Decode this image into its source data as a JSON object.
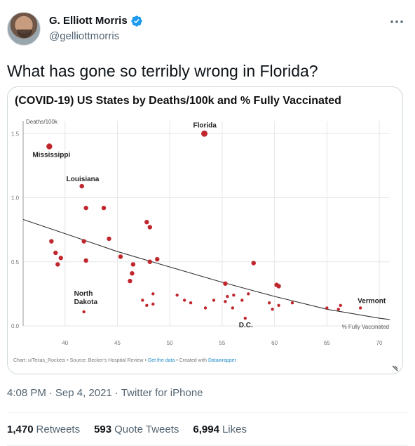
{
  "author": {
    "display_name": "G. Elliott Morris",
    "handle": "@gelliottmorris"
  },
  "tweet": {
    "text": "What has gone so terribly wrong in Florida?",
    "time": "4:08 PM",
    "sep": "·",
    "date": "Sep 4, 2021",
    "source": "Twitter for iPhone"
  },
  "stats": {
    "retweets_count": "1,470",
    "retweets_label": "Retweets",
    "quotes_count": "593",
    "quotes_label": "Quote Tweets",
    "likes_count": "6,994",
    "likes_label": "Likes"
  },
  "colors": {
    "point": "#c0272d",
    "trend": "#333333",
    "grid": "#e6e6e6",
    "verified": "#1d9bf0"
  },
  "chart_footer": {
    "credit": "Chart: u/Texas_Rockets • Source: Becker's Hospital Review • ",
    "get_data": "Get the data",
    "created": " • Created with ",
    "tool": "Datawrapper"
  },
  "chart_data": {
    "type": "scatter",
    "title": "(COVID-19) US States by Deaths/100k and % Fully Vaccinated",
    "ylabel": "Deaths/100k",
    "xlabel": "% Fully Vaccinated",
    "xlim": [
      36,
      71
    ],
    "ylim": [
      0,
      1.6
    ],
    "x_ticks": [
      40,
      45,
      50,
      55,
      60,
      65,
      70
    ],
    "y_ticks": [
      0.0,
      0.5,
      1.0,
      1.5
    ],
    "y_tick_labels": [
      "0.0",
      "0.5",
      "1.0",
      "1.5"
    ],
    "grid": true,
    "points": [
      {
        "x": 38.5,
        "y": 1.4,
        "label": "Mississippi"
      },
      {
        "x": 41.6,
        "y": 1.09,
        "label": "Louisiana"
      },
      {
        "x": 53.3,
        "y": 1.5,
        "label": "Florida"
      },
      {
        "x": 41.8,
        "y": 0.11,
        "label": "North Dakota"
      },
      {
        "x": 57.2,
        "y": 0.06,
        "label": "D.C."
      },
      {
        "x": 68.2,
        "y": 0.14,
        "label": "Vermont"
      },
      {
        "x": 42.0,
        "y": 0.92
      },
      {
        "x": 43.7,
        "y": 0.92
      },
      {
        "x": 38.7,
        "y": 0.66
      },
      {
        "x": 39.1,
        "y": 0.57
      },
      {
        "x": 39.6,
        "y": 0.53
      },
      {
        "x": 39.3,
        "y": 0.48
      },
      {
        "x": 41.8,
        "y": 0.66
      },
      {
        "x": 42.0,
        "y": 0.51
      },
      {
        "x": 44.2,
        "y": 0.68
      },
      {
        "x": 45.3,
        "y": 0.54
      },
      {
        "x": 46.5,
        "y": 0.48
      },
      {
        "x": 46.4,
        "y": 0.41
      },
      {
        "x": 46.2,
        "y": 0.35
      },
      {
        "x": 47.8,
        "y": 0.81
      },
      {
        "x": 48.1,
        "y": 0.77
      },
      {
        "x": 48.1,
        "y": 0.5
      },
      {
        "x": 48.8,
        "y": 0.52
      },
      {
        "x": 47.4,
        "y": 0.2
      },
      {
        "x": 47.8,
        "y": 0.16
      },
      {
        "x": 48.4,
        "y": 0.25
      },
      {
        "x": 48.4,
        "y": 0.17
      },
      {
        "x": 50.7,
        "y": 0.24
      },
      {
        "x": 51.4,
        "y": 0.2
      },
      {
        "x": 52.0,
        "y": 0.18
      },
      {
        "x": 53.4,
        "y": 0.14
      },
      {
        "x": 54.2,
        "y": 0.2
      },
      {
        "x": 55.3,
        "y": 0.33
      },
      {
        "x": 55.5,
        "y": 0.23
      },
      {
        "x": 55.3,
        "y": 0.19
      },
      {
        "x": 56.1,
        "y": 0.24
      },
      {
        "x": 56.0,
        "y": 0.14
      },
      {
        "x": 56.9,
        "y": 0.2
      },
      {
        "x": 57.5,
        "y": 0.25
      },
      {
        "x": 58.0,
        "y": 0.49
      },
      {
        "x": 60.2,
        "y": 0.32
      },
      {
        "x": 60.4,
        "y": 0.31
      },
      {
        "x": 59.5,
        "y": 0.18
      },
      {
        "x": 59.8,
        "y": 0.13
      },
      {
        "x": 60.4,
        "y": 0.16
      },
      {
        "x": 61.7,
        "y": 0.18
      },
      {
        "x": 65.0,
        "y": 0.14
      },
      {
        "x": 66.1,
        "y": 0.13
      },
      {
        "x": 66.3,
        "y": 0.16
      }
    ],
    "trendline": [
      {
        "x": 36,
        "y": 0.83
      },
      {
        "x": 40,
        "y": 0.72
      },
      {
        "x": 45,
        "y": 0.58
      },
      {
        "x": 50,
        "y": 0.46
      },
      {
        "x": 55,
        "y": 0.34
      },
      {
        "x": 60,
        "y": 0.23
      },
      {
        "x": 65,
        "y": 0.13
      },
      {
        "x": 70,
        "y": 0.06
      },
      {
        "x": 71,
        "y": 0.05
      }
    ]
  }
}
